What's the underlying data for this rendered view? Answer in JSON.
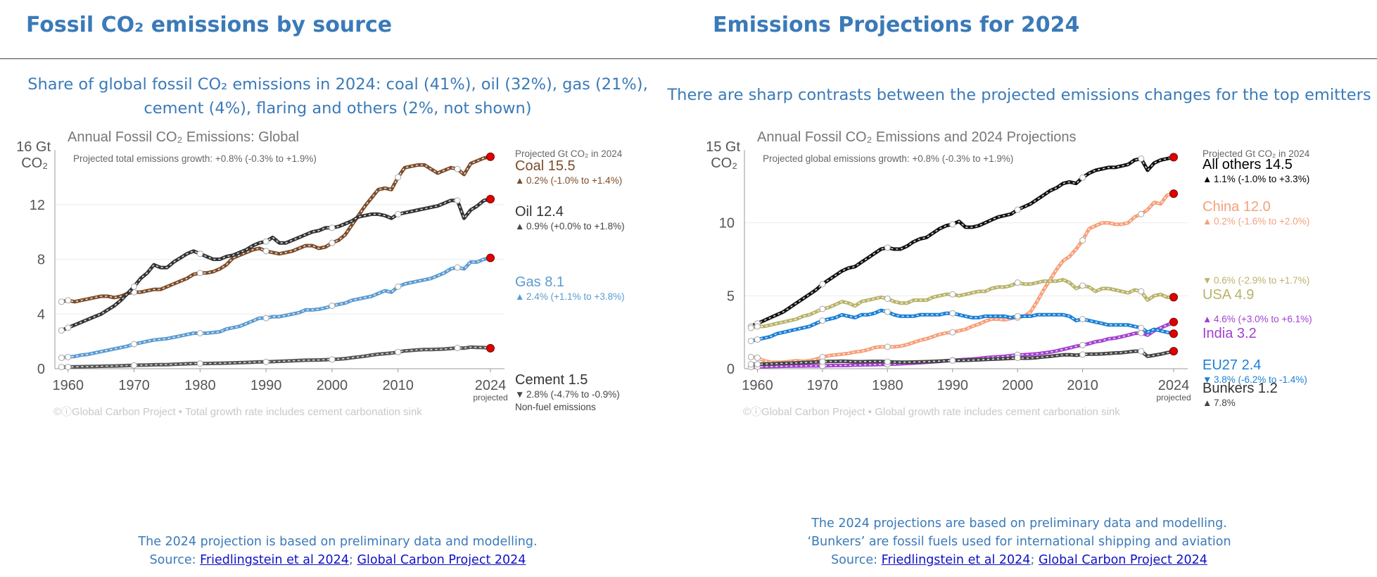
{
  "left": {
    "heading": "Fossil CO₂ emissions by source",
    "subtitle_line1": "Share of global fossil CO₂ emissions in 2024: coal (41%), oil (32%), gas (21%),",
    "subtitle_line2": "cement (4%), flaring and others (2%, not shown)",
    "footer_line1": "The 2024 projection is based on preliminary data and modelling.",
    "footer_source_prefix": "Source: ",
    "footer_link1": "Friedlingstein et al 2024",
    "footer_sep": ";",
    "footer_link2": "Global Carbon Project 2024"
  },
  "right": {
    "heading": "Emissions Projections for 2024",
    "subtitle": "There are sharp contrasts between the projected emissions changes for the top emitters",
    "footer_line1": "The 2024 projections are based on preliminary data and modelling.",
    "footer_line2": "‘Bunkers’ are fossil fuels used for international shipping and aviation",
    "footer_source_prefix": "Source: ",
    "footer_link1": "Friedlingstein et al 2024",
    "footer_sep": ";",
    "footer_link2": "Global Carbon Project 2024"
  },
  "chart_data": [
    {
      "type": "line",
      "title": "Annual Fossil CO₂ Emissions: Global",
      "note": "Projected total emissions growth: +0.8% (-0.3% to +1.9%)",
      "ylabel_line1": "16 Gt",
      "ylabel_line2": "CO₂",
      "ylim": [
        0,
        16
      ],
      "yticks": [
        0,
        4,
        8,
        12
      ],
      "xlim": [
        1958,
        2024
      ],
      "xticks": [
        "1960",
        "1970",
        "1980",
        "1990",
        "2000",
        "2010",
        "2024"
      ],
      "xtick_sub": "projected",
      "header": "Projected Gt CO₂ in 2024",
      "watermark": "©ⓘGlobal Carbon Project  •  Total growth rate includes cement carbonation sink",
      "x": [
        1959,
        1960,
        1961,
        1962,
        1963,
        1964,
        1965,
        1966,
        1967,
        1968,
        1969,
        1970,
        1971,
        1972,
        1973,
        1974,
        1975,
        1976,
        1977,
        1978,
        1979,
        1980,
        1981,
        1982,
        1983,
        1984,
        1985,
        1986,
        1987,
        1988,
        1989,
        1990,
        1991,
        1992,
        1993,
        1994,
        1995,
        1996,
        1997,
        1998,
        1999,
        2000,
        2001,
        2002,
        2003,
        2004,
        2005,
        2006,
        2007,
        2008,
        2009,
        2010,
        2011,
        2012,
        2013,
        2014,
        2015,
        2016,
        2017,
        2018,
        2019,
        2020,
        2021,
        2022,
        2023,
        2024
      ],
      "series": [
        {
          "name": "Coal",
          "value_label": "Coal 15.5",
          "growth": "0.2% (-1.0% to +1.4%)",
          "arrow": "up",
          "color": "#7b4b2a",
          "values": [
            4.9,
            5.0,
            4.9,
            5.0,
            5.1,
            5.2,
            5.3,
            5.3,
            5.2,
            5.3,
            5.5,
            5.6,
            5.6,
            5.7,
            5.8,
            5.8,
            6.0,
            6.2,
            6.4,
            6.6,
            6.9,
            7.0,
            7.0,
            7.1,
            7.3,
            7.6,
            8.1,
            8.3,
            8.5,
            8.7,
            8.8,
            8.6,
            8.5,
            8.4,
            8.5,
            8.6,
            8.8,
            9.0,
            9.0,
            8.8,
            8.9,
            9.2,
            9.4,
            9.8,
            10.5,
            11.2,
            11.9,
            12.5,
            13.1,
            13.2,
            13.1,
            14.0,
            14.7,
            14.8,
            14.9,
            14.9,
            14.6,
            14.3,
            14.5,
            14.7,
            14.6,
            14.2,
            15.0,
            15.2,
            15.4,
            15.5
          ]
        },
        {
          "name": "Oil",
          "value_label": "Oil 12.4",
          "growth": "0.9% (+0.0% to +1.8%)",
          "arrow": "up",
          "color": "#333333",
          "values": [
            2.8,
            3.0,
            3.2,
            3.4,
            3.6,
            3.8,
            4.0,
            4.3,
            4.6,
            5.0,
            5.5,
            6.0,
            6.6,
            7.0,
            7.6,
            7.4,
            7.4,
            7.8,
            8.1,
            8.4,
            8.6,
            8.4,
            8.2,
            8.0,
            8.0,
            8.2,
            8.3,
            8.5,
            8.7,
            9.0,
            9.2,
            9.3,
            9.6,
            9.2,
            9.2,
            9.4,
            9.6,
            9.8,
            10.0,
            10.1,
            10.3,
            10.3,
            10.4,
            10.6,
            10.8,
            11.1,
            11.2,
            11.3,
            11.3,
            11.2,
            11.0,
            11.3,
            11.4,
            11.5,
            11.6,
            11.7,
            11.8,
            11.9,
            12.1,
            12.3,
            12.3,
            11.0,
            11.6,
            11.9,
            12.3,
            12.4
          ]
        },
        {
          "name": "Gas",
          "value_label": "Gas 8.1",
          "growth": "2.4% (+1.1% to +3.8%)",
          "arrow": "up",
          "color": "#5b9bd1",
          "values": [
            0.8,
            0.85,
            0.9,
            1.0,
            1.05,
            1.15,
            1.25,
            1.35,
            1.45,
            1.55,
            1.65,
            1.8,
            1.9,
            2.0,
            2.1,
            2.15,
            2.2,
            2.3,
            2.4,
            2.5,
            2.6,
            2.6,
            2.6,
            2.65,
            2.7,
            2.9,
            3.0,
            3.1,
            3.3,
            3.5,
            3.7,
            3.7,
            3.8,
            3.8,
            3.9,
            4.0,
            4.1,
            4.3,
            4.3,
            4.35,
            4.45,
            4.6,
            4.7,
            4.8,
            5.0,
            5.1,
            5.2,
            5.3,
            5.5,
            5.7,
            5.6,
            6.0,
            6.2,
            6.3,
            6.4,
            6.5,
            6.6,
            6.8,
            7.0,
            7.3,
            7.4,
            7.3,
            7.8,
            7.8,
            8.0,
            8.1
          ]
        },
        {
          "name": "Cement",
          "value_label": "Cement 1.5",
          "growth": "2.8% (-4.7% to -0.9%)",
          "arrow": "down",
          "color": "#555555",
          "note": "Non-fuel emissions",
          "values": [
            0.12,
            0.13,
            0.14,
            0.15,
            0.16,
            0.17,
            0.18,
            0.19,
            0.2,
            0.21,
            0.23,
            0.24,
            0.26,
            0.27,
            0.29,
            0.3,
            0.3,
            0.32,
            0.34,
            0.36,
            0.38,
            0.38,
            0.38,
            0.39,
            0.4,
            0.41,
            0.42,
            0.44,
            0.46,
            0.48,
            0.5,
            0.5,
            0.52,
            0.54,
            0.56,
            0.58,
            0.6,
            0.62,
            0.63,
            0.64,
            0.66,
            0.68,
            0.7,
            0.74,
            0.8,
            0.86,
            0.92,
            1.0,
            1.06,
            1.1,
            1.14,
            1.22,
            1.3,
            1.34,
            1.38,
            1.4,
            1.4,
            1.42,
            1.44,
            1.48,
            1.52,
            1.5,
            1.58,
            1.56,
            1.55,
            1.5
          ]
        }
      ]
    },
    {
      "type": "line",
      "title": "Annual Fossil CO₂ Emissions and 2024 Projections",
      "note": "Projected global emissions growth: +0.8% (-0.3% to +1.9%)",
      "ylabel_line1": "15 Gt",
      "ylabel_line2": "CO₂",
      "ylim": [
        0,
        15
      ],
      "yticks": [
        0,
        5,
        10
      ],
      "xlim": [
        1958,
        2024
      ],
      "xticks": [
        "1960",
        "1970",
        "1980",
        "1990",
        "2000",
        "2010",
        "2024"
      ],
      "xtick_sub": "projected",
      "header": "Projected Gt CO₂ in 2024",
      "watermark": "©ⓘGlobal Carbon Project  •  Global growth rate includes cement carbonation sink",
      "x": [
        1959,
        1960,
        1961,
        1962,
        1963,
        1964,
        1965,
        1966,
        1967,
        1968,
        1969,
        1970,
        1971,
        1972,
        1973,
        1974,
        1975,
        1976,
        1977,
        1978,
        1979,
        1980,
        1981,
        1982,
        1983,
        1984,
        1985,
        1986,
        1987,
        1988,
        1989,
        1990,
        1991,
        1992,
        1993,
        1994,
        1995,
        1996,
        1997,
        1998,
        1999,
        2000,
        2001,
        2002,
        2003,
        2004,
        2005,
        2006,
        2007,
        2008,
        2009,
        2010,
        2011,
        2012,
        2013,
        2014,
        2015,
        2016,
        2017,
        2018,
        2019,
        2020,
        2021,
        2022,
        2023,
        2024
      ],
      "series": [
        {
          "name": "All others",
          "value_label": "All others 14.5",
          "growth": "1.1% (-1.0% to +3.3%)",
          "arrow": "up",
          "color": "#111111",
          "values": [
            2.9,
            3.1,
            3.3,
            3.5,
            3.7,
            3.9,
            4.2,
            4.5,
            4.8,
            5.1,
            5.4,
            5.8,
            6.1,
            6.4,
            6.7,
            6.9,
            7.0,
            7.3,
            7.6,
            7.9,
            8.2,
            8.3,
            8.2,
            8.2,
            8.4,
            8.7,
            8.9,
            9.0,
            9.3,
            9.6,
            9.8,
            9.9,
            10.1,
            9.7,
            9.7,
            9.8,
            10.0,
            10.2,
            10.4,
            10.5,
            10.6,
            10.9,
            11.1,
            11.3,
            11.6,
            11.9,
            12.2,
            12.4,
            12.7,
            12.8,
            12.7,
            13.1,
            13.4,
            13.6,
            13.7,
            13.8,
            13.8,
            13.9,
            14.0,
            14.3,
            14.4,
            13.6,
            14.1,
            14.3,
            14.4,
            14.5
          ]
        },
        {
          "name": "China",
          "value_label": "China 12.0",
          "growth": "0.2% (-1.6% to +2.0%)",
          "arrow": "up",
          "color": "#f5a07a",
          "values": [
            0.8,
            0.75,
            0.55,
            0.45,
            0.45,
            0.45,
            0.5,
            0.55,
            0.5,
            0.55,
            0.65,
            0.8,
            0.9,
            0.95,
            1.0,
            1.05,
            1.15,
            1.2,
            1.3,
            1.45,
            1.5,
            1.5,
            1.5,
            1.55,
            1.65,
            1.8,
            1.95,
            2.05,
            2.2,
            2.35,
            2.45,
            2.5,
            2.6,
            2.7,
            2.9,
            3.05,
            3.25,
            3.4,
            3.4,
            3.35,
            3.45,
            3.5,
            3.6,
            3.9,
            4.6,
            5.4,
            6.1,
            6.8,
            7.4,
            7.7,
            8.2,
            8.8,
            9.6,
            9.8,
            10.0,
            10.0,
            9.9,
            9.9,
            10.0,
            10.4,
            10.6,
            10.9,
            11.4,
            11.3,
            11.9,
            12.0
          ]
        },
        {
          "name": "USA",
          "value_label": "USA 4.9",
          "growth": "0.6% (-2.9% to +1.7%)",
          "arrow": "down",
          "color": "#b8b36a",
          "values": [
            2.8,
            2.9,
            2.9,
            3.0,
            3.1,
            3.2,
            3.3,
            3.4,
            3.6,
            3.7,
            3.9,
            4.1,
            4.2,
            4.4,
            4.6,
            4.5,
            4.3,
            4.6,
            4.7,
            4.8,
            4.9,
            4.8,
            4.6,
            4.5,
            4.5,
            4.7,
            4.7,
            4.7,
            4.9,
            5.0,
            5.1,
            5.1,
            5.0,
            5.1,
            5.2,
            5.3,
            5.3,
            5.5,
            5.6,
            5.6,
            5.7,
            5.9,
            5.8,
            5.8,
            5.9,
            6.0,
            6.0,
            6.0,
            6.1,
            5.9,
            5.5,
            5.7,
            5.6,
            5.3,
            5.5,
            5.5,
            5.4,
            5.3,
            5.2,
            5.4,
            5.3,
            4.7,
            5.0,
            5.1,
            4.9,
            4.9
          ]
        },
        {
          "name": "India",
          "value_label": "India 3.2",
          "growth": "4.6% (+3.0% to +6.1%)",
          "arrow": "up",
          "color": "#a43fd0",
          "values": [
            0.12,
            0.13,
            0.14,
            0.15,
            0.16,
            0.17,
            0.18,
            0.19,
            0.19,
            0.2,
            0.2,
            0.2,
            0.21,
            0.22,
            0.22,
            0.23,
            0.25,
            0.26,
            0.27,
            0.28,
            0.29,
            0.3,
            0.32,
            0.34,
            0.36,
            0.38,
            0.41,
            0.44,
            0.47,
            0.5,
            0.54,
            0.58,
            0.61,
            0.64,
            0.66,
            0.7,
            0.75,
            0.79,
            0.82,
            0.85,
            0.9,
            0.95,
            0.96,
            0.99,
            1.02,
            1.08,
            1.14,
            1.22,
            1.32,
            1.43,
            1.54,
            1.62,
            1.72,
            1.85,
            1.92,
            2.05,
            2.1,
            2.2,
            2.3,
            2.42,
            2.45,
            2.3,
            2.6,
            2.8,
            3.0,
            3.2
          ]
        },
        {
          "name": "EU27",
          "value_label": "EU27 2.4",
          "growth": "3.8% (-6.2% to -1.4%)",
          "arrow": "down",
          "color": "#1a7fd6",
          "values": [
            1.9,
            2.0,
            2.1,
            2.2,
            2.4,
            2.5,
            2.6,
            2.7,
            2.8,
            2.9,
            3.1,
            3.3,
            3.4,
            3.5,
            3.7,
            3.6,
            3.5,
            3.7,
            3.7,
            3.8,
            4.0,
            3.9,
            3.7,
            3.6,
            3.6,
            3.6,
            3.7,
            3.7,
            3.7,
            3.7,
            3.8,
            3.8,
            3.7,
            3.6,
            3.5,
            3.5,
            3.6,
            3.6,
            3.6,
            3.6,
            3.5,
            3.6,
            3.6,
            3.6,
            3.7,
            3.7,
            3.7,
            3.7,
            3.7,
            3.6,
            3.3,
            3.4,
            3.3,
            3.2,
            3.1,
            3.0,
            3.0,
            3.0,
            3.0,
            2.9,
            2.8,
            2.5,
            2.7,
            2.6,
            2.5,
            2.4
          ]
        },
        {
          "name": "Bunkers",
          "value_label": "Bunkers 1.2",
          "growth": "7.8%",
          "arrow": "up",
          "color": "#444444",
          "values": [
            0.3,
            0.31,
            0.32,
            0.33,
            0.35,
            0.37,
            0.38,
            0.4,
            0.42,
            0.44,
            0.46,
            0.48,
            0.5,
            0.5,
            0.52,
            0.5,
            0.48,
            0.48,
            0.49,
            0.5,
            0.5,
            0.48,
            0.46,
            0.45,
            0.45,
            0.46,
            0.47,
            0.48,
            0.5,
            0.52,
            0.54,
            0.56,
            0.57,
            0.58,
            0.59,
            0.61,
            0.63,
            0.65,
            0.67,
            0.69,
            0.71,
            0.74,
            0.72,
            0.73,
            0.76,
            0.81,
            0.85,
            0.9,
            0.95,
            0.96,
            0.92,
            0.97,
            1.0,
            1.0,
            1.02,
            1.05,
            1.08,
            1.1,
            1.15,
            1.2,
            1.2,
            0.85,
            0.92,
            1.0,
            1.1,
            1.2
          ]
        }
      ]
    }
  ]
}
